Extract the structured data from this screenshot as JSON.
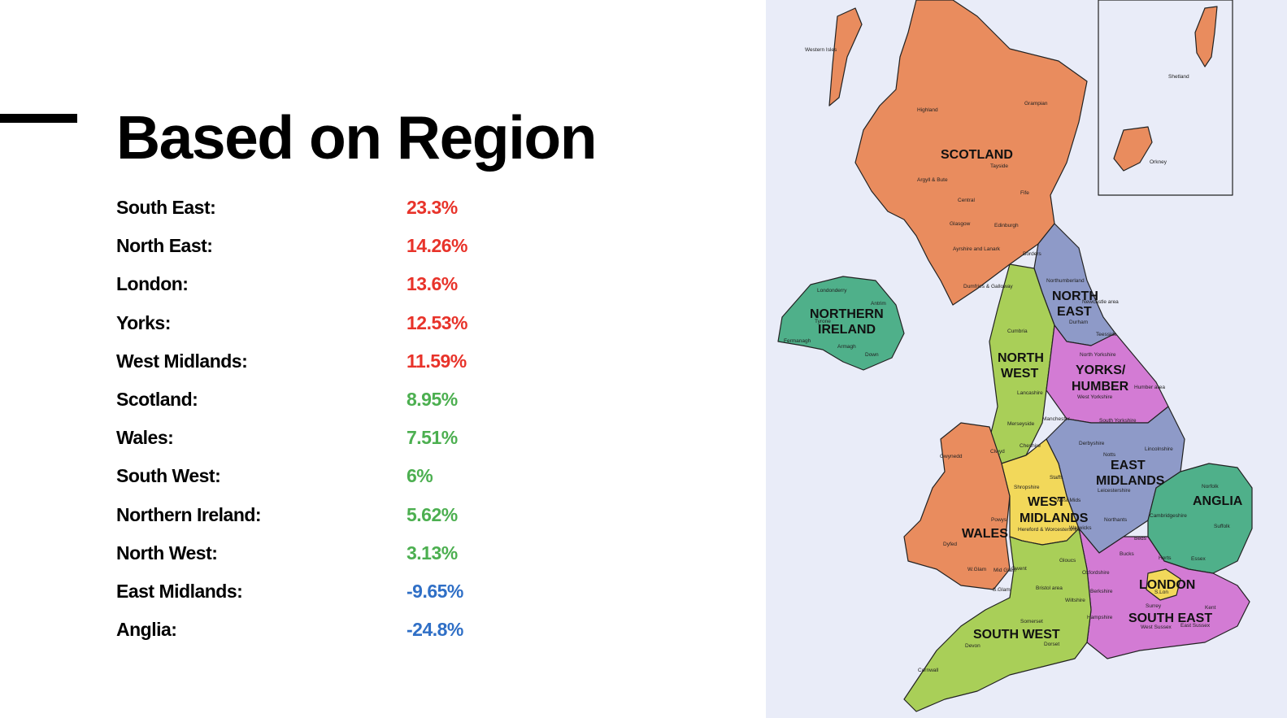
{
  "title": "Based on Region",
  "rows": [
    {
      "label": "South East:",
      "value": "23.3%",
      "trend": "up"
    },
    {
      "label": "North East:",
      "value": "14.26%",
      "trend": "up"
    },
    {
      "label": "London:",
      "value": "13.6%",
      "trend": "up"
    },
    {
      "label": "Yorks:",
      "value": "12.53%",
      "trend": "up"
    },
    {
      "label": "West Midlands:",
      "value": "11.59%",
      "trend": "up"
    },
    {
      "label": "Scotland:",
      "value": "8.95%",
      "trend": "mid"
    },
    {
      "label": "Wales:",
      "value": "7.51%",
      "trend": "mid"
    },
    {
      "label": "South West:",
      "value": "6%",
      "trend": "mid"
    },
    {
      "label": "Northern Ireland:",
      "value": "5.62%",
      "trend": "mid"
    },
    {
      "label": "North West:",
      "value": "3.13%",
      "trend": "mid"
    },
    {
      "label": "East Midlands:",
      "value": "-9.65%",
      "trend": "down"
    },
    {
      "label": "Anglia:",
      "value": "-24.8%",
      "trend": "down"
    }
  ],
  "colors": {
    "up": "#e8332a",
    "mid": "#4caf50",
    "down": "#2f6fc6"
  },
  "map": {
    "regions": {
      "scotland": "SCOTLAND",
      "northern_ireland": [
        "NORTHERN",
        "IRELAND"
      ],
      "north_east": [
        "NORTH",
        "EAST"
      ],
      "north_west": [
        "NORTH",
        "WEST"
      ],
      "yorks": [
        "YORKS/",
        "HUMBER"
      ],
      "east_midlands": [
        "EAST",
        "MIDLANDS"
      ],
      "west_midlands": [
        "WEST",
        "MIDLANDS"
      ],
      "wales": "WALES",
      "anglia": "ANGLIA",
      "london": "LONDON",
      "south_east": "SOUTH EAST",
      "south_west": "SOUTH WEST"
    },
    "places": {
      "western_isles": "Western Isles",
      "shetland": "Shetland",
      "orkney": "Orkney",
      "highland": "Highland",
      "grampian": "Grampian",
      "tayside": "Tayside",
      "argyll": "Argyll & Bute",
      "central": "Central",
      "fife": "Fife",
      "glasgow": "Glasgow",
      "edinburgh": "Edinburgh",
      "ayrshire": "Ayrshire and Lanark",
      "borders": "Borders",
      "dumfries": "Dumfries & Galloway",
      "northumberland": "Northumberland",
      "newcastle": "Newcastle area",
      "durham": "Durham",
      "teesside": "Teesside",
      "cumbria": "Cumbria",
      "londonderry": "Londonderry",
      "antrim": "Antrim",
      "tyrone": "Tyrone",
      "fermanagh": "Fermanagh",
      "armagh": "Armagh",
      "down": "Down",
      "north_yorkshire": "North Yorkshire",
      "lancashire": "Lancashire",
      "west_yorkshire": "West Yorkshire",
      "humber": "Humber area",
      "manchester": "Manchester",
      "merseyside": "Merseyside",
      "south_yorkshire": "South Yorkshire",
      "cheshire": "Cheshire",
      "derbyshire": "Derbyshire",
      "lincolnshire": "Lincolnshire",
      "notts": "Notts",
      "gwynedd": "Gwynedd",
      "clwyd": "Clwyd",
      "staffs": "Staffs",
      "shropshire": "Shropshire",
      "west_mids": "West Mids",
      "leicestershire": "Leicestershire",
      "norfolk": "Norfolk",
      "cambridgeshire": "Cambridgeshire",
      "suffolk": "Suffolk",
      "northants": "Northants",
      "powys": "Powys",
      "warwicks": "Warwicks",
      "hereford": "Hereford & Worcestershire",
      "dyfed": "Dyfed",
      "beds": "Beds",
      "herts": "Herts",
      "essex": "Essex",
      "bucks": "Bucks",
      "gloucs": "Gloucs",
      "oxfordshire": "Oxfordshire",
      "wglam": "W.Glam",
      "midglam": "Mid Glam",
      "gwent": "Gwent",
      "sglam": "S.Glam",
      "bristol": "Bristol area",
      "wiltshire": "Wiltshire",
      "berkshire": "Berkshire",
      "slon": "S.Lon",
      "surrey": "Surrey",
      "kent": "Kent",
      "hampshire": "Hampshire",
      "somerset": "Somerset",
      "wsussex": "West Sussex",
      "esussex": "East Sussex",
      "devon": "Devon",
      "dorset": "Dorset",
      "cornwall": "Cornwall"
    }
  }
}
